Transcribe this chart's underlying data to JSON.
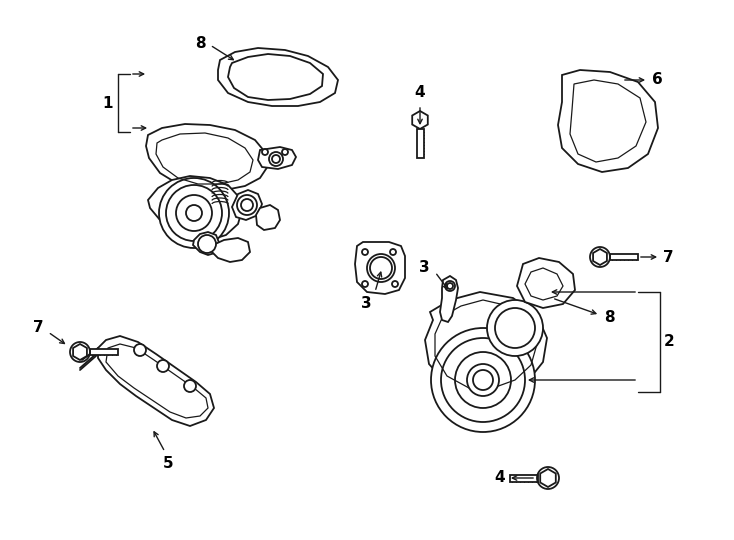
{
  "background_color": "#ffffff",
  "line_color": "#1a1a1a",
  "figsize": [
    7.34,
    5.4
  ],
  "dpi": 100
}
